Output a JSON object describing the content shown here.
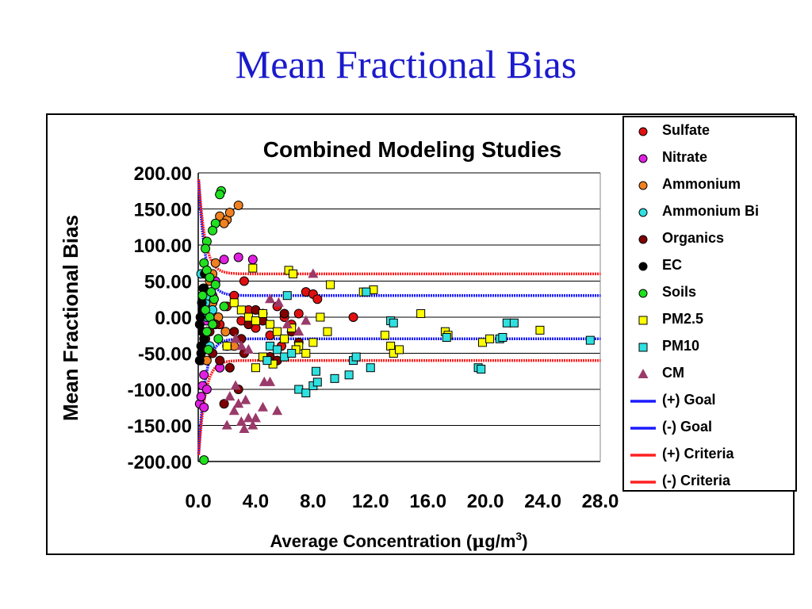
{
  "slide": {
    "title": "Mean Fractional Bias"
  },
  "chart_data": {
    "type": "scatter",
    "title": "Combined Modeling Studies",
    "xlabel": "Average Concentration (μg/m³)",
    "xlabel_parts": {
      "text": "Average Concentration (",
      "mu": "μ",
      "unit": "g/m",
      "sup": "3",
      "close": ")"
    },
    "ylabel": "Mean Fractional Bias",
    "xlim": [
      0,
      28
    ],
    "ylim": [
      -200,
      200
    ],
    "x_ticks": [
      "0.0",
      "4.0",
      "8.0",
      "12.0",
      "16.0",
      "20.0",
      "24.0",
      "28.0"
    ],
    "y_ticks": [
      "200.00",
      "150.00",
      "100.00",
      "50.00",
      "0.00",
      "-50.00",
      "-100.00",
      "-150.00",
      "-200.00"
    ],
    "grid": "horizontal",
    "legend_position": "right",
    "series": [
      {
        "name": "Sulfate",
        "marker": "circle",
        "color": "#e01010",
        "points": [
          [
            0.3,
            10
          ],
          [
            0.6,
            -20
          ],
          [
            1.0,
            20
          ],
          [
            1.5,
            -10
          ],
          [
            2.0,
            15
          ],
          [
            2.5,
            30
          ],
          [
            3.0,
            -5
          ],
          [
            3.5,
            10
          ],
          [
            4.0,
            -15
          ],
          [
            4.5,
            5
          ],
          [
            5.0,
            -25
          ],
          [
            5.5,
            15
          ],
          [
            6.0,
            0
          ],
          [
            6.5,
            -10
          ],
          [
            7.0,
            5
          ],
          [
            7.5,
            35
          ],
          [
            8.0,
            32
          ],
          [
            8.3,
            25
          ],
          [
            3.2,
            50
          ],
          [
            10.8,
            0
          ],
          [
            5.8,
            -40
          ]
        ]
      },
      {
        "name": "Nitrate",
        "marker": "circle",
        "color": "#e020e0",
        "points": [
          [
            0.1,
            -120
          ],
          [
            0.2,
            -110
          ],
          [
            0.3,
            -95
          ],
          [
            0.4,
            -80
          ],
          [
            0.2,
            -60
          ],
          [
            0.5,
            -40
          ],
          [
            0.3,
            -20
          ],
          [
            0.6,
            -5
          ],
          [
            0.8,
            15
          ],
          [
            1.0,
            30
          ],
          [
            1.2,
            50
          ],
          [
            1.8,
            80
          ],
          [
            2.8,
            83
          ],
          [
            3.8,
            80
          ],
          [
            0.4,
            -125
          ],
          [
            0.6,
            -100
          ],
          [
            1.5,
            -70
          ]
        ]
      },
      {
        "name": "Ammonium",
        "marker": "circle",
        "color": "#f08020",
        "points": [
          [
            1.5,
            140
          ],
          [
            2.0,
            135
          ],
          [
            2.2,
            145
          ],
          [
            2.8,
            155
          ],
          [
            1.8,
            130
          ],
          [
            1.2,
            75
          ],
          [
            0.8,
            50
          ],
          [
            0.5,
            35
          ],
          [
            1.0,
            20
          ],
          [
            1.4,
            0
          ],
          [
            1.9,
            -20
          ],
          [
            2.5,
            -40
          ],
          [
            0.6,
            -60
          ],
          [
            1.0,
            60
          ]
        ]
      },
      {
        "name": "Ammonium Bi",
        "marker": "circle",
        "color": "#30e0e0",
        "points": [
          [
            0.2,
            60
          ],
          [
            0.4,
            40
          ],
          [
            0.5,
            20
          ],
          [
            0.6,
            0
          ],
          [
            0.3,
            -20
          ],
          [
            0.8,
            -40
          ],
          [
            1.0,
            10
          ],
          [
            0.7,
            30
          ]
        ]
      },
      {
        "name": "Organics",
        "marker": "circle",
        "color": "#800000",
        "points": [
          [
            0.5,
            -30
          ],
          [
            1.0,
            -50
          ],
          [
            1.5,
            -60
          ],
          [
            2.0,
            -40
          ],
          [
            2.5,
            -20
          ],
          [
            3.0,
            -30
          ],
          [
            3.5,
            -10
          ],
          [
            4.0,
            10
          ],
          [
            4.5,
            -5
          ],
          [
            5.0,
            -55
          ],
          [
            5.5,
            -60
          ],
          [
            6.0,
            5
          ],
          [
            6.5,
            -20
          ],
          [
            7.0,
            -35
          ],
          [
            1.8,
            -120
          ],
          [
            2.2,
            -70
          ],
          [
            2.8,
            -100
          ],
          [
            3.2,
            -50
          ],
          [
            0.8,
            -20
          ],
          [
            1.2,
            -10
          ]
        ]
      },
      {
        "name": "EC",
        "marker": "circle",
        "color": "#000000",
        "points": [
          [
            0.1,
            -60
          ],
          [
            0.2,
            -40
          ],
          [
            0.3,
            -20
          ],
          [
            0.15,
            0
          ],
          [
            0.25,
            20
          ],
          [
            0.35,
            40
          ],
          [
            0.45,
            60
          ],
          [
            0.2,
            -50
          ],
          [
            0.1,
            -10
          ],
          [
            0.3,
            10
          ],
          [
            0.4,
            -30
          ]
        ]
      },
      {
        "name": "Soils",
        "marker": "circle",
        "color": "#20e020",
        "points": [
          [
            1.6,
            175
          ],
          [
            1.5,
            170
          ],
          [
            1.2,
            130
          ],
          [
            1.0,
            120
          ],
          [
            0.6,
            105
          ],
          [
            0.5,
            95
          ],
          [
            0.4,
            75
          ],
          [
            0.6,
            65
          ],
          [
            0.8,
            55
          ],
          [
            1.2,
            45
          ],
          [
            0.3,
            30
          ],
          [
            0.5,
            10
          ],
          [
            0.8,
            0
          ],
          [
            1.0,
            -10
          ],
          [
            0.6,
            -20
          ],
          [
            1.4,
            -30
          ],
          [
            0.7,
            -45
          ],
          [
            1.1,
            25
          ],
          [
            0.4,
            -198
          ],
          [
            1.8,
            15
          ],
          [
            0.9,
            35
          ]
        ]
      },
      {
        "name": "PM2.5",
        "marker": "square",
        "color": "#ffff00",
        "points": [
          [
            2.5,
            20
          ],
          [
            3.0,
            10
          ],
          [
            3.5,
            0
          ],
          [
            4.0,
            -5
          ],
          [
            4.5,
            5
          ],
          [
            5.0,
            -10
          ],
          [
            5.5,
            -20
          ],
          [
            6.0,
            -30
          ],
          [
            6.5,
            -15
          ],
          [
            7.0,
            -40
          ],
          [
            7.5,
            -50
          ],
          [
            8.0,
            -35
          ],
          [
            8.5,
            0
          ],
          [
            9.0,
            -20
          ],
          [
            4.0,
            -70
          ],
          [
            4.5,
            -55
          ],
          [
            3.8,
            68
          ],
          [
            6.3,
            65
          ],
          [
            6.6,
            60
          ],
          [
            9.2,
            45
          ],
          [
            11.5,
            35
          ],
          [
            12.2,
            38
          ],
          [
            13.0,
            -25
          ],
          [
            13.4,
            -40
          ],
          [
            13.6,
            -50
          ],
          [
            14.0,
            -45
          ],
          [
            15.5,
            5
          ],
          [
            17.2,
            -20
          ],
          [
            17.4,
            -25
          ],
          [
            19.8,
            -35
          ],
          [
            20.3,
            -30
          ],
          [
            23.8,
            -18
          ],
          [
            2.0,
            -40
          ],
          [
            5.2,
            -65
          ],
          [
            6.8,
            -45
          ]
        ]
      },
      {
        "name": "PM10",
        "marker": "square",
        "color": "#30e0e0",
        "points": [
          [
            5.0,
            -40
          ],
          [
            5.5,
            -45
          ],
          [
            6.0,
            -55
          ],
          [
            6.5,
            -50
          ],
          [
            7.0,
            -100
          ],
          [
            7.5,
            -105
          ],
          [
            8.0,
            -95
          ],
          [
            8.3,
            -90
          ],
          [
            9.5,
            -85
          ],
          [
            10.5,
            -80
          ],
          [
            10.8,
            -60
          ],
          [
            11.0,
            -55
          ],
          [
            11.7,
            35
          ],
          [
            12.0,
            -70
          ],
          [
            13.4,
            -5
          ],
          [
            13.6,
            -8
          ],
          [
            17.3,
            -28
          ],
          [
            19.5,
            -70
          ],
          [
            19.7,
            -72
          ],
          [
            21.0,
            -30
          ],
          [
            21.2,
            -28
          ],
          [
            21.5,
            -8
          ],
          [
            22.0,
            -8
          ],
          [
            27.3,
            -32
          ],
          [
            8.2,
            -75
          ],
          [
            4.8,
            -60
          ],
          [
            6.2,
            30
          ]
        ]
      },
      {
        "name": "CM",
        "marker": "triangle",
        "color": "#9a3a6a",
        "points": [
          [
            2.0,
            -150
          ],
          [
            2.5,
            -130
          ],
          [
            3.0,
            -145
          ],
          [
            3.2,
            -155
          ],
          [
            3.5,
            -140
          ],
          [
            3.8,
            -150
          ],
          [
            4.0,
            -140
          ],
          [
            4.5,
            -125
          ],
          [
            5.0,
            -90
          ],
          [
            5.5,
            -130
          ],
          [
            2.8,
            -120
          ],
          [
            2.2,
            -110
          ],
          [
            3.3,
            -115
          ],
          [
            2.6,
            -95
          ],
          [
            4.6,
            -90
          ],
          [
            3.0,
            -40
          ],
          [
            3.5,
            -45
          ],
          [
            5.0,
            25
          ],
          [
            5.6,
            20
          ],
          [
            6.2,
            -10
          ],
          [
            7.0,
            -20
          ],
          [
            7.5,
            -5
          ],
          [
            8.0,
            60
          ],
          [
            2.6,
            -30
          ]
        ]
      }
    ],
    "lines": [
      {
        "name": "(+) Goal",
        "color": "#1a1aff",
        "value": 30
      },
      {
        "name": "(-) Goal",
        "color": "#1a1aff",
        "value": -30
      },
      {
        "name": "(+) Criteria",
        "color": "#ff2020",
        "value": 60
      },
      {
        "name": "(-) Criteria",
        "color": "#ff2020",
        "value": -60
      }
    ],
    "legend": [
      "Sulfate",
      "Nitrate",
      "Ammonium",
      "Ammonium Bi",
      "Organics",
      "EC",
      "Soils",
      "PM2.5",
      "PM10",
      "CM",
      "(+) Goal",
      "(-) Goal",
      "(+) Criteria",
      "(-) Criteria"
    ]
  }
}
